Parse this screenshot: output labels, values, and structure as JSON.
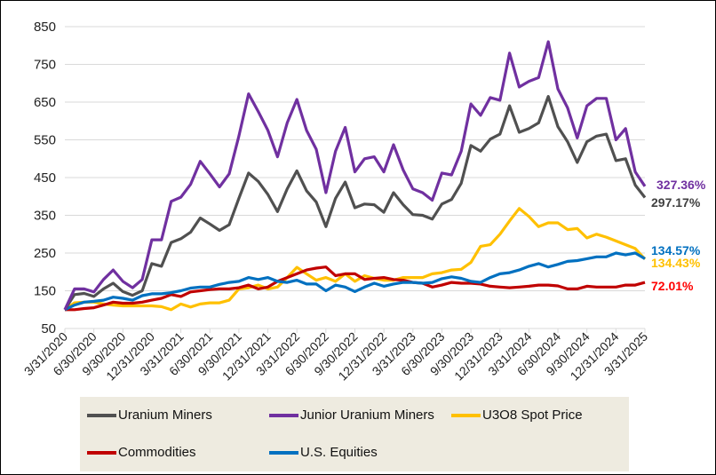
{
  "chart_data": {
    "type": "line",
    "title": "",
    "xlabel": "",
    "ylabel": "",
    "ylim": [
      50,
      850
    ],
    "yticks": [
      50,
      150,
      250,
      350,
      450,
      550,
      650,
      750,
      850
    ],
    "grid": "horizontal",
    "legend_position": "bottom",
    "xtick_labels": [
      "3/31/2020",
      "6/30/2020",
      "9/30/2020",
      "12/31/2020",
      "3/31/2021",
      "6/30/2021",
      "9/30/2021",
      "12/31/2021",
      "3/31/2022",
      "6/30/2022",
      "9/30/2022",
      "12/31/2022",
      "3/31/2023",
      "6/30/2023",
      "9/30/2023",
      "12/31/2023",
      "3/31/2024",
      "6/30/2024",
      "9/30/2024",
      "12/31/2024",
      "3/31/2025"
    ],
    "x_frequency": "monthly",
    "series": [
      {
        "name": "Uranium Miners",
        "color": "#505050",
        "end_label": "297.17%",
        "end_label_color": "#404040",
        "values": [
          100,
          140,
          143,
          135,
          155,
          170,
          148,
          138,
          150,
          222,
          215,
          278,
          288,
          305,
          343,
          327,
          310,
          325,
          395,
          462,
          440,
          405,
          360,
          420,
          468,
          415,
          385,
          320,
          395,
          438,
          370,
          380,
          378,
          358,
          410,
          378,
          352,
          350,
          340,
          380,
          392,
          435,
          535,
          520,
          552,
          565,
          640,
          570,
          580,
          595,
          665,
          585,
          545,
          490,
          545,
          560,
          565,
          495,
          500,
          430,
          397
        ]
      },
      {
        "name": "Junior Uranium Miners",
        "color": "#7030a0",
        "end_label": "327.36%",
        "end_label_color": "#7030a0",
        "values": [
          100,
          155,
          155,
          147,
          180,
          205,
          175,
          158,
          180,
          285,
          285,
          387,
          398,
          432,
          493,
          460,
          425,
          460,
          560,
          672,
          625,
          575,
          505,
          595,
          657,
          575,
          525,
          410,
          520,
          583,
          465,
          500,
          505,
          465,
          537,
          470,
          420,
          410,
          390,
          462,
          457,
          520,
          645,
          615,
          662,
          655,
          780,
          690,
          705,
          715,
          810,
          685,
          635,
          555,
          640,
          660,
          660,
          550,
          580,
          465,
          427
        ]
      },
      {
        "name": "U3O8 Spot Price",
        "color": "#ffc000",
        "end_label": "134.43%",
        "end_label_color": "#ffc000",
        "values": [
          100,
          118,
          120,
          120,
          115,
          112,
          110,
          110,
          110,
          110,
          108,
          100,
          115,
          107,
          115,
          118,
          118,
          125,
          155,
          158,
          165,
          155,
          160,
          185,
          212,
          195,
          178,
          185,
          175,
          195,
          175,
          190,
          183,
          178,
          178,
          185,
          185,
          185,
          195,
          198,
          205,
          207,
          225,
          268,
          272,
          300,
          335,
          368,
          347,
          320,
          330,
          330,
          312,
          315,
          290,
          300,
          292,
          282,
          272,
          262,
          234
        ]
      },
      {
        "name": "Commodities",
        "color": "#c00000",
        "end_label": "72.01%",
        "end_label_color": "#ff0000",
        "values": [
          100,
          100,
          103,
          105,
          112,
          120,
          117,
          117,
          120,
          125,
          130,
          140,
          135,
          147,
          150,
          153,
          155,
          155,
          158,
          165,
          155,
          160,
          175,
          185,
          195,
          205,
          210,
          213,
          190,
          195,
          195,
          180,
          183,
          185,
          180,
          178,
          172,
          170,
          160,
          165,
          172,
          170,
          170,
          168,
          162,
          160,
          158,
          160,
          162,
          165,
          165,
          163,
          155,
          155,
          162,
          160,
          160,
          160,
          165,
          165,
          172
        ]
      },
      {
        "name": "U.S. Equities",
        "color": "#0070c0",
        "end_label": "134.57%",
        "end_label_color": "#0070c0",
        "values": [
          100,
          112,
          120,
          122,
          125,
          133,
          130,
          125,
          137,
          142,
          142,
          145,
          150,
          157,
          160,
          160,
          167,
          172,
          175,
          185,
          180,
          185,
          175,
          172,
          178,
          168,
          168,
          150,
          165,
          160,
          148,
          160,
          170,
          162,
          168,
          172,
          172,
          170,
          172,
          182,
          187,
          183,
          175,
          172,
          185,
          195,
          198,
          205,
          215,
          222,
          213,
          220,
          228,
          230,
          235,
          240,
          240,
          250,
          245,
          250,
          235
        ]
      }
    ]
  }
}
